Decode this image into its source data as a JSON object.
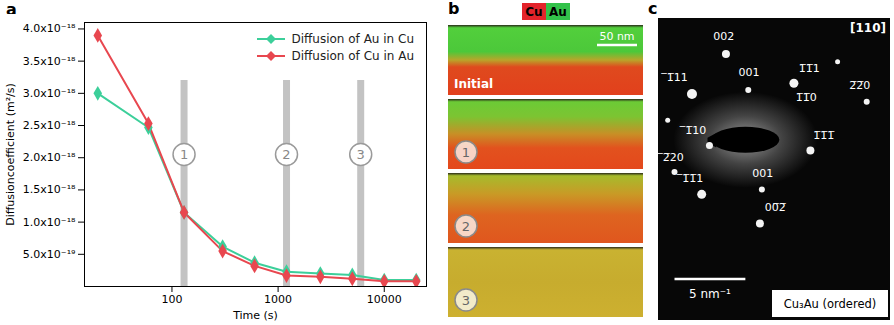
{
  "panel_labels": [
    "a",
    "b",
    "c"
  ],
  "chart_data": {
    "type": "line",
    "x_label": "Time (s)",
    "y_label": "Diffusioncoefficient (m²/s)",
    "log": "x",
    "x": [
      20,
      60,
      130,
      300,
      600,
      1200,
      2500,
      5000,
      10000,
      20000
    ],
    "xlim": [
      15,
      25000
    ],
    "xticks": [
      100,
      1000,
      10000
    ],
    "ylim": [
      0,
      4.1e-18
    ],
    "yticks": [
      {
        "value": 5e-19,
        "label": "5.0x10⁻¹⁹"
      },
      {
        "value": 1e-18,
        "label": "1.0x10⁻¹⁸"
      },
      {
        "value": 1.5e-18,
        "label": "1.5x10⁻¹⁸"
      },
      {
        "value": 2e-18,
        "label": "2.0x10⁻¹⁸"
      },
      {
        "value": 2.5e-18,
        "label": "2.5x10⁻¹⁸"
      },
      {
        "value": 3e-18,
        "label": "3.0x10⁻¹⁸"
      },
      {
        "value": 3.5e-18,
        "label": "3.5x10⁻¹⁸"
      },
      {
        "value": 4e-18,
        "label": "4.0x10⁻¹⁸"
      }
    ],
    "legend": "top-right",
    "marker": "diamond",
    "series": [
      {
        "name": "Diffusion of Au in Cu",
        "color": "#3ccf9a",
        "values": [
          3e-18,
          2.47e-18,
          1.15e-18,
          6.2e-19,
          3.7e-19,
          2.3e-19,
          2e-19,
          1.8e-19,
          1e-19,
          1e-19
        ]
      },
      {
        "name": "Diffusion of Cu in Au",
        "color": "#e8474f",
        "values": [
          3.9e-18,
          2.53e-18,
          1.15e-18,
          5.5e-19,
          3.2e-19,
          1.7e-19,
          1.5e-19,
          1.2e-19,
          8e-20,
          8e-20
        ]
      }
    ],
    "annotations": [
      {
        "x": 130,
        "label": "1"
      },
      {
        "x": 1200,
        "label": "2"
      },
      {
        "x": 6000,
        "label": "3"
      }
    ]
  },
  "edx_maps": {
    "legend": [
      {
        "name": "Cu",
        "color": "#e3242b"
      },
      {
        "name": "Au",
        "color": "#33c24a"
      }
    ],
    "scale_bar": "50 nm",
    "frames": [
      "Initial",
      "1",
      "2",
      "3"
    ]
  },
  "diffraction": {
    "zone_axis": "[110]",
    "spots": [
      "002",
      "̅1̅11",
      "001",
      "1̅1̅1",
      "1̅1̅0",
      "2̅2̅0",
      "̅2̅20",
      "̅1̅10",
      "1̅1̅1̅",
      "̅1̅1̅1",
      "001",
      "00̅2̅"
    ],
    "scale_bar": "5 nm⁻¹",
    "phase": "Cu₃Au (ordered)"
  }
}
